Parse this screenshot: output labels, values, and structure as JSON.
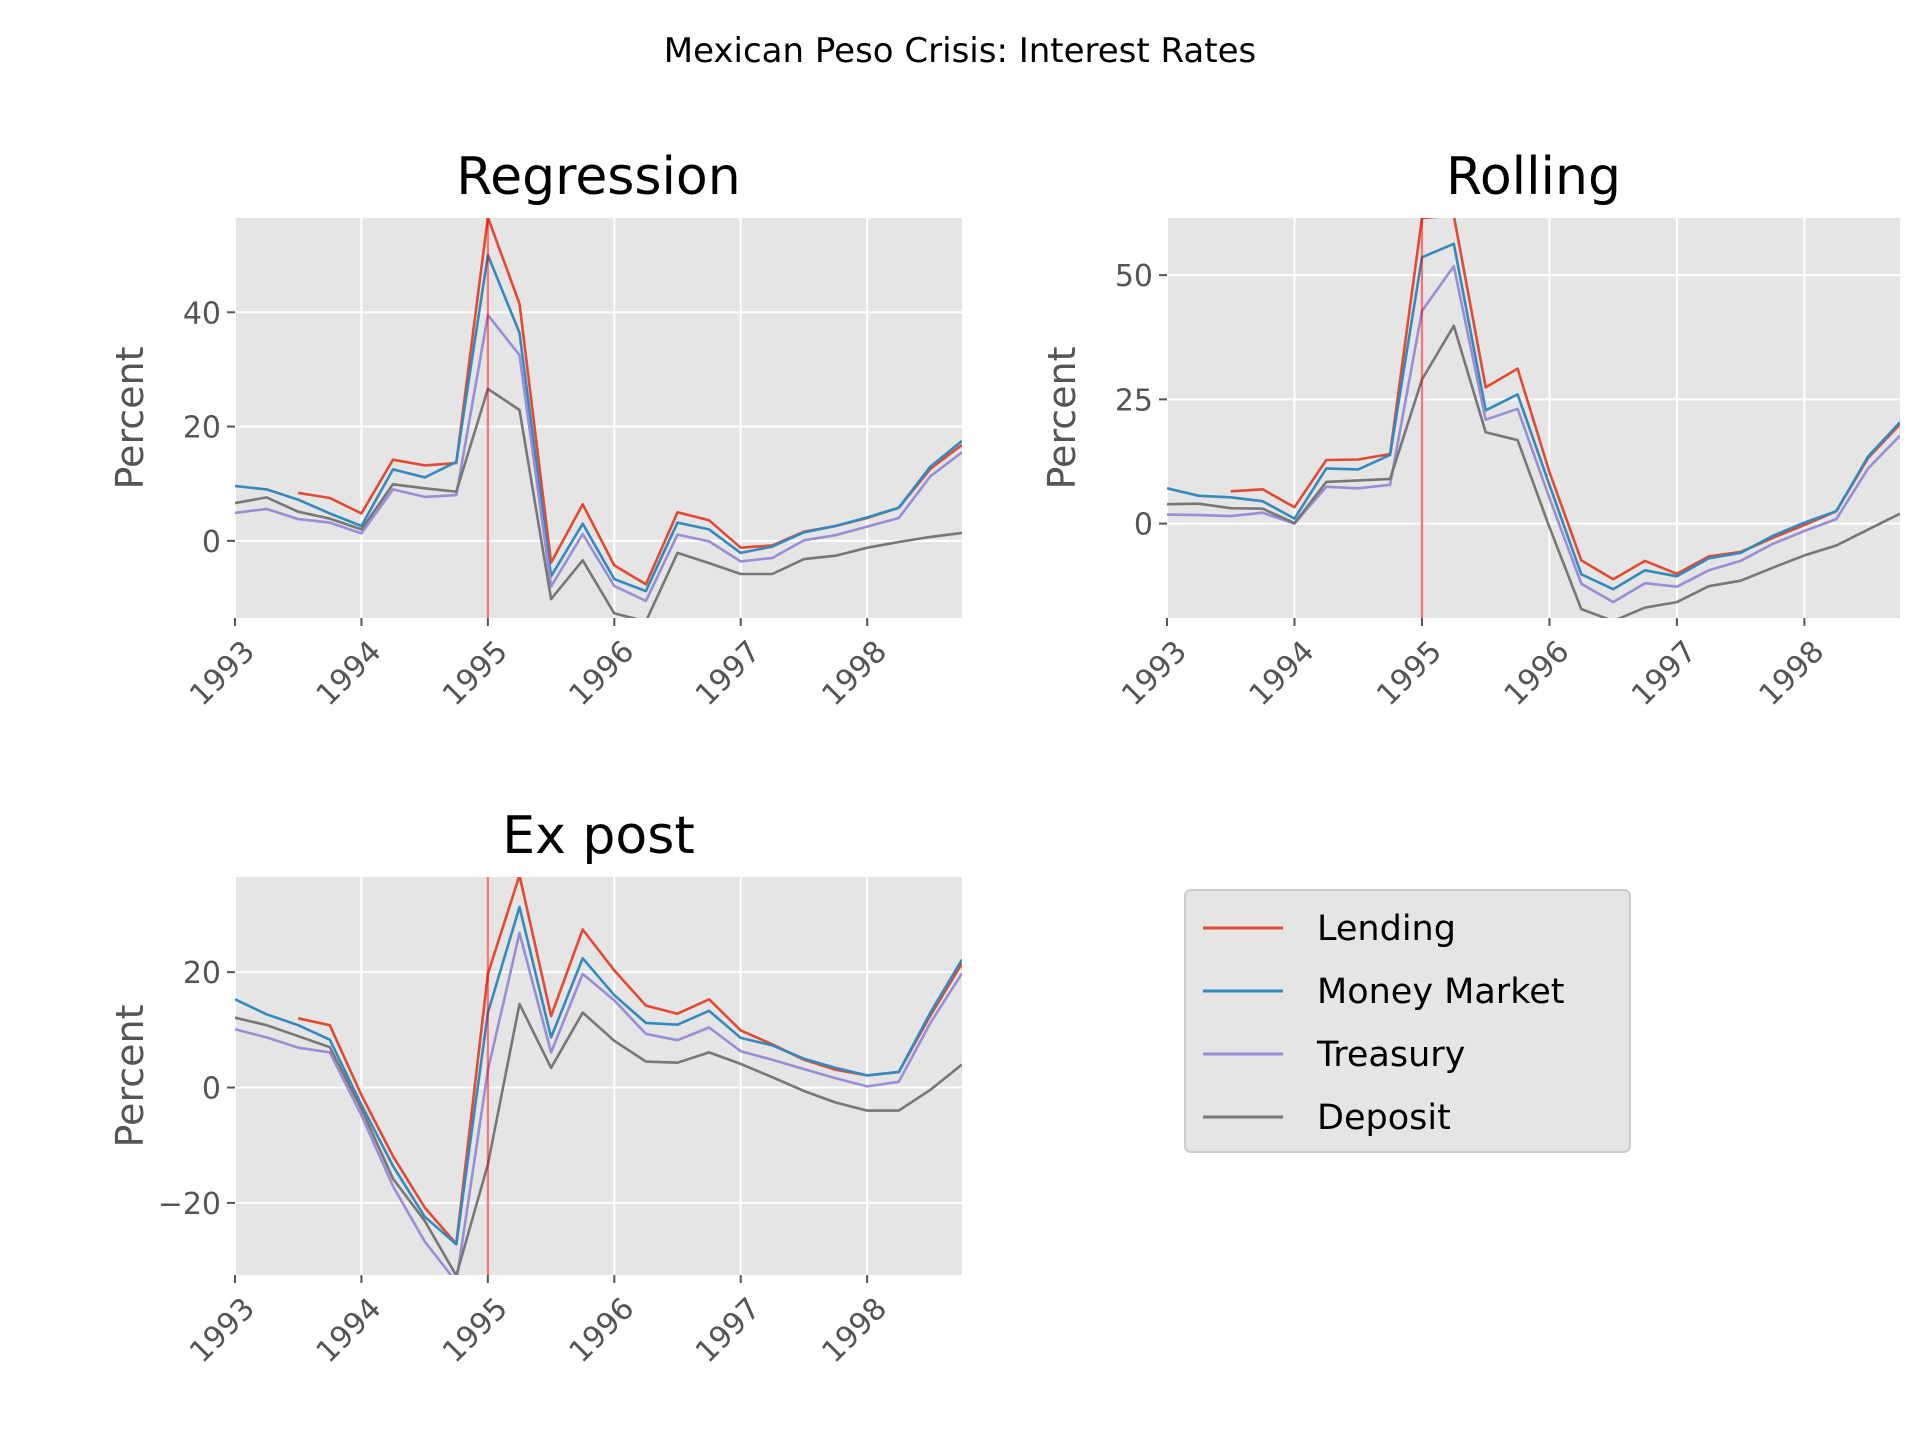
{
  "figure": {
    "suptitle": "Mexican Peso Crisis: Interest Rates",
    "colors": {
      "Lending": "#e24a33",
      "Money Market": "#348abd",
      "Treasury": "#988ed5",
      "Deposit": "#777777",
      "marker_line": "#ff0000",
      "panel_bg": "#e5e5e5",
      "grid": "#ffffff"
    },
    "legend": {
      "placement": "lower-right empty slot",
      "entries": [
        "Lending",
        "Money Market",
        "Treasury",
        "Deposit"
      ]
    }
  },
  "chart_data": [
    {
      "type": "line",
      "title": "Regression",
      "xlabel": "",
      "ylabel": "Percent",
      "xlim": [
        1993.0,
        1998.75
      ],
      "ylim": [
        -13.5,
        56.5
      ],
      "xticks": [
        1993,
        1994,
        1995,
        1996,
        1997,
        1998
      ],
      "yticks": [
        0,
        20,
        40
      ],
      "vline_x": 1995.0,
      "grid": true,
      "x": [
        1993.0,
        1993.25,
        1993.5,
        1993.75,
        1994.0,
        1994.25,
        1994.5,
        1994.75,
        1995.0,
        1995.25,
        1995.5,
        1995.75,
        1996.0,
        1996.25,
        1996.5,
        1996.75,
        1997.0,
        1997.25,
        1997.5,
        1997.75,
        1998.0,
        1998.25,
        1998.5,
        1998.75
      ],
      "series": [
        {
          "name": "Lending",
          "values": [
            null,
            null,
            8.4,
            7.5,
            4.8,
            14.2,
            13.2,
            13.6,
            56.6,
            41.5,
            -3.8,
            6.4,
            -4.3,
            -7.6,
            5.0,
            3.6,
            -1.2,
            -0.8,
            1.6,
            2.6,
            4.0,
            5.8,
            12.6,
            16.8
          ]
        },
        {
          "name": "Money Market",
          "values": [
            9.6,
            9.0,
            7.2,
            4.8,
            2.6,
            12.5,
            11.1,
            13.8,
            50.0,
            36.4,
            -6.2,
            3.0,
            -6.7,
            -8.8,
            3.2,
            2.0,
            -2.1,
            -1.0,
            1.5,
            2.6,
            4.1,
            5.8,
            13.0,
            17.5
          ]
        },
        {
          "name": "Treasury",
          "values": [
            4.9,
            5.6,
            3.8,
            3.2,
            1.3,
            9.0,
            7.7,
            8.0,
            39.5,
            32.5,
            -8.0,
            1.2,
            -7.9,
            -10.5,
            1.1,
            -0.1,
            -3.6,
            -3.0,
            0.1,
            1.0,
            2.5,
            4.0,
            11.3,
            15.5
          ]
        },
        {
          "name": "Deposit",
          "values": [
            6.6,
            7.6,
            5.1,
            3.9,
            2.0,
            9.9,
            9.2,
            8.6,
            26.6,
            22.9,
            -10.2,
            -3.4,
            -12.7,
            -14.1,
            -2.1,
            -3.9,
            -5.8,
            -5.8,
            -3.2,
            -2.6,
            -1.2,
            -0.2,
            0.7,
            1.4
          ]
        }
      ]
    },
    {
      "type": "line",
      "title": "Rolling",
      "xlabel": "",
      "ylabel": "Percent",
      "xlim": [
        1993.0,
        1998.75
      ],
      "ylim": [
        -19.0,
        61.5
      ],
      "xticks": [
        1993,
        1994,
        1995,
        1996,
        1997,
        1998
      ],
      "yticks": [
        0,
        25,
        50
      ],
      "vline_x": 1995.0,
      "grid": true,
      "x": [
        1993.0,
        1993.25,
        1993.5,
        1993.75,
        1994.0,
        1994.25,
        1994.5,
        1994.75,
        1995.0,
        1995.25,
        1995.5,
        1995.75,
        1996.0,
        1996.25,
        1996.5,
        1996.75,
        1997.0,
        1997.25,
        1997.5,
        1997.75,
        1998.0,
        1998.25,
        1998.5,
        1998.75
      ],
      "series": [
        {
          "name": "Lending",
          "values": [
            null,
            null,
            6.5,
            6.9,
            3.3,
            12.8,
            12.9,
            14.0,
            61.5,
            62.0,
            27.4,
            31.2,
            10.4,
            -7.4,
            -11.2,
            -7.5,
            -10.1,
            -6.6,
            -5.7,
            -2.9,
            -0.3,
            2.5,
            13.2,
            20.0
          ]
        },
        {
          "name": "Money Market",
          "values": [
            7.1,
            5.6,
            5.3,
            4.5,
            1.0,
            11.1,
            10.9,
            13.8,
            53.6,
            56.3,
            22.8,
            26.0,
            7.8,
            -10.2,
            -13.2,
            -9.4,
            -10.6,
            -7.0,
            -5.9,
            -2.5,
            0.2,
            2.5,
            13.5,
            20.4
          ]
        },
        {
          "name": "Treasury",
          "values": [
            1.8,
            1.7,
            1.5,
            2.2,
            0.0,
            7.4,
            7.1,
            7.8,
            42.8,
            51.8,
            20.9,
            23.1,
            5.2,
            -12.1,
            -15.8,
            -12.0,
            -12.7,
            -9.4,
            -7.5,
            -4.1,
            -1.5,
            0.9,
            11.1,
            17.7
          ]
        },
        {
          "name": "Deposit",
          "values": [
            3.9,
            4.0,
            3.1,
            3.0,
            0.1,
            8.4,
            8.7,
            9.0,
            29.0,
            39.8,
            18.4,
            16.8,
            -0.7,
            -17.2,
            -19.6,
            -16.9,
            -15.8,
            -12.6,
            -11.5,
            -8.9,
            -6.4,
            -4.4,
            -1.2,
            2.0
          ]
        }
      ]
    },
    {
      "type": "line",
      "title": "Ex post",
      "xlabel": "",
      "ylabel": "Percent",
      "xlim": [
        1993.0,
        1998.75
      ],
      "ylim": [
        -32.5,
        36.5
      ],
      "xticks": [
        1993,
        1994,
        1995,
        1996,
        1997,
        1998
      ],
      "yticks": [
        -20,
        0,
        20
      ],
      "vline_x": 1995.0,
      "grid": true,
      "x": [
        1993.0,
        1993.25,
        1993.5,
        1993.75,
        1994.0,
        1994.25,
        1994.5,
        1994.75,
        1995.0,
        1995.25,
        1995.5,
        1995.75,
        1996.0,
        1996.25,
        1996.5,
        1996.75,
        1997.0,
        1997.25,
        1997.5,
        1997.75,
        1998.0,
        1998.25,
        1998.5,
        1998.75
      ],
      "series": [
        {
          "name": "Lending",
          "values": [
            null,
            null,
            12.0,
            10.8,
            -1.3,
            -11.9,
            -20.8,
            -27.1,
            19.7,
            36.8,
            12.4,
            27.4,
            20.3,
            14.2,
            12.8,
            15.3,
            9.9,
            7.5,
            4.8,
            3.1,
            2.1,
            2.7,
            12.5,
            21.5
          ]
        },
        {
          "name": "Money Market",
          "values": [
            15.3,
            12.7,
            10.8,
            8.3,
            -3.0,
            -13.6,
            -22.4,
            -27.2,
            13.0,
            31.3,
            8.7,
            22.4,
            16.0,
            11.2,
            10.9,
            13.3,
            8.6,
            7.3,
            5.0,
            3.4,
            2.1,
            2.7,
            13.0,
            22.2
          ]
        },
        {
          "name": "Treasury",
          "values": [
            10.1,
            8.7,
            6.9,
            6.1,
            -4.8,
            -17.1,
            -26.7,
            -33.7,
            3.0,
            26.8,
            6.1,
            19.7,
            15.1,
            9.3,
            8.2,
            10.4,
            6.3,
            4.8,
            3.2,
            1.6,
            0.2,
            1.0,
            11.2,
            19.8
          ]
        },
        {
          "name": "Deposit",
          "values": [
            12.1,
            10.8,
            8.9,
            7.0,
            -3.7,
            -15.8,
            -23.1,
            -32.6,
            -13.3,
            14.5,
            3.4,
            13.0,
            8.1,
            4.5,
            4.3,
            6.1,
            4.1,
            1.8,
            -0.6,
            -2.6,
            -4.0,
            -4.0,
            -0.4,
            4.0
          ]
        }
      ]
    }
  ]
}
